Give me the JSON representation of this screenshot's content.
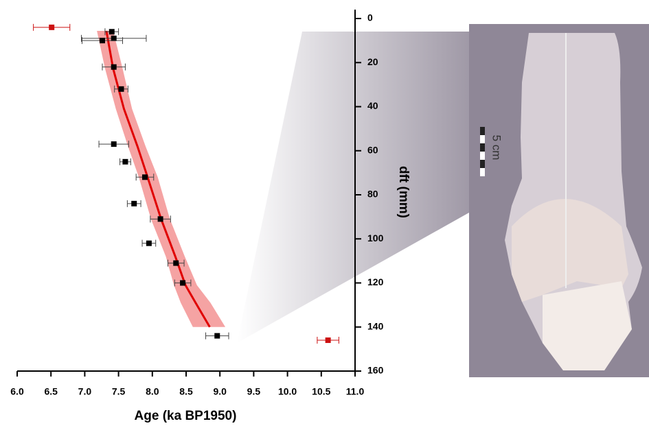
{
  "chart_data": {
    "type": "age-depth",
    "xlabel": "Age (ka BP1950)",
    "ylabel": "dft (mm)",
    "scale_label": "5 cm",
    "xlim": [
      6,
      11
    ],
    "xticks": [
      {
        "value": 6,
        "label": "6.0"
      },
      6.5,
      {
        "value": 7,
        "label": "7.0"
      },
      7.5,
      {
        "value": 8,
        "label": "8.0"
      },
      8.5,
      {
        "value": 9,
        "label": "9.0"
      },
      9.5,
      {
        "value": 10,
        "label": "10.0"
      },
      10.5,
      {
        "value": 11,
        "label": "11.0"
      }
    ],
    "ylim": [
      0,
      160
    ],
    "y_inverted": true,
    "yticks": [
      0,
      20,
      40,
      60,
      80,
      100,
      120,
      140,
      160
    ],
    "model": {
      "color": "#e00000",
      "band_color": "#f5a3a3",
      "x": [
        7.32,
        7.42,
        7.58,
        7.78,
        7.93,
        8.13,
        8.34,
        8.49,
        8.64,
        8.85
      ],
      "y": [
        5.6,
        22.7,
        41,
        58,
        72,
        91,
        108,
        121,
        129,
        140
      ],
      "lower": [
        7.18,
        7.3,
        7.46,
        7.64,
        7.8,
        7.98,
        8.2,
        8.32,
        8.42,
        8.6
      ],
      "upper": [
        7.42,
        7.56,
        7.7,
        7.9,
        8.08,
        8.26,
        8.48,
        8.66,
        8.86,
        9.08
      ]
    },
    "points": {
      "color": "#000000",
      "x": [
        7.4,
        7.43,
        7.26,
        7.43,
        7.54,
        7.43,
        7.6,
        7.89,
        7.73,
        8.12,
        7.95,
        8.35,
        8.45,
        8.96
      ],
      "y": [
        6,
        9,
        10,
        22,
        32,
        57,
        65,
        72,
        84,
        91,
        102,
        111,
        120,
        144
      ],
      "xerr": [
        0.1,
        0.48,
        0.3,
        0.17,
        0.1,
        0.22,
        0.08,
        0.13,
        0.1,
        0.15,
        0.1,
        0.12,
        0.12,
        0.17
      ]
    },
    "outliers": {
      "color": "#cc1111",
      "x": [
        6.51,
        10.6
      ],
      "y": [
        4,
        146
      ],
      "xerr": [
        0.27,
        0.16
      ]
    }
  }
}
